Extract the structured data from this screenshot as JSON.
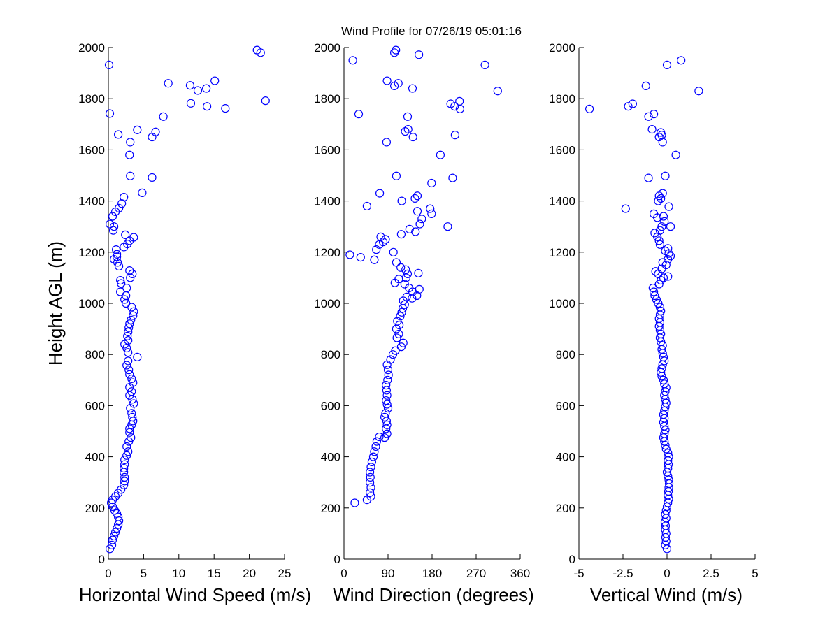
{
  "figure": {
    "title": "Wind Profile for  07/26/19 05:01:16",
    "marker_color": "#0000ff",
    "background": "#ffffff"
  },
  "chart_data": [
    {
      "type": "scatter",
      "xlabel": "Horizontal Wind Speed (m/s)",
      "ylabel": "Height AGL (m)",
      "xlim": [
        0,
        25
      ],
      "ylim": [
        0,
        2000
      ],
      "xticks": [
        "0",
        "5",
        "10",
        "15",
        "20",
        "25"
      ],
      "yticks": [
        "0",
        "200",
        "400",
        "600",
        "800",
        "1000",
        "1200",
        "1400",
        "1600",
        "1800",
        "2000"
      ],
      "grid": false,
      "points": [
        [
          0.2,
          40
        ],
        [
          0.5,
          55
        ],
        [
          0.6,
          75
        ],
        [
          0.8,
          90
        ],
        [
          1.0,
          105
        ],
        [
          1.2,
          120
        ],
        [
          1.4,
          135
        ],
        [
          1.5,
          150
        ],
        [
          1.4,
          165
        ],
        [
          1.2,
          178
        ],
        [
          0.9,
          190
        ],
        [
          0.6,
          205
        ],
        [
          0.4,
          220
        ],
        [
          0.6,
          232
        ],
        [
          1.0,
          245
        ],
        [
          1.4,
          258
        ],
        [
          1.8,
          272
        ],
        [
          2.2,
          290
        ],
        [
          2.3,
          305
        ],
        [
          2.3,
          320
        ],
        [
          2.2,
          340
        ],
        [
          2.2,
          355
        ],
        [
          2.3,
          370
        ],
        [
          2.3,
          388
        ],
        [
          2.6,
          405
        ],
        [
          2.8,
          420
        ],
        [
          2.6,
          440
        ],
        [
          2.9,
          460
        ],
        [
          3.2,
          475
        ],
        [
          3.0,
          495
        ],
        [
          3.0,
          510
        ],
        [
          3.3,
          525
        ],
        [
          3.5,
          540
        ],
        [
          3.4,
          555
        ],
        [
          3.3,
          570
        ],
        [
          3.1,
          590
        ],
        [
          3.6,
          608
        ],
        [
          3.4,
          625
        ],
        [
          3.0,
          640
        ],
        [
          3.3,
          655
        ],
        [
          3.0,
          672
        ],
        [
          3.5,
          690
        ],
        [
          3.3,
          705
        ],
        [
          3.0,
          722
        ],
        [
          2.9,
          740
        ],
        [
          2.6,
          758
        ],
        [
          2.8,
          775
        ],
        [
          4.1,
          790
        ],
        [
          2.8,
          808
        ],
        [
          2.6,
          825
        ],
        [
          2.3,
          840
        ],
        [
          2.8,
          855
        ],
        [
          2.7,
          872
        ],
        [
          2.8,
          888
        ],
        [
          2.9,
          905
        ],
        [
          3.0,
          920
        ],
        [
          3.2,
          935
        ],
        [
          3.5,
          952
        ],
        [
          3.6,
          968
        ],
        [
          3.3,
          985
        ],
        [
          2.5,
          1000
        ],
        [
          2.3,
          1015
        ],
        [
          2.5,
          1030
        ],
        [
          1.7,
          1045
        ],
        [
          2.6,
          1060
        ],
        [
          1.8,
          1078
        ],
        [
          1.7,
          1090
        ],
        [
          3.1,
          1100
        ],
        [
          3.4,
          1115
        ],
        [
          3.0,
          1128
        ],
        [
          1.5,
          1145
        ],
        [
          1.3,
          1160
        ],
        [
          0.8,
          1172
        ],
        [
          1.2,
          1182
        ],
        [
          1.2,
          1192
        ],
        [
          1.1,
          1210
        ],
        [
          2.2,
          1220
        ],
        [
          2.7,
          1232
        ],
        [
          3.0,
          1245
        ],
        [
          3.6,
          1258
        ],
        [
          2.4,
          1268
        ],
        [
          0.7,
          1285
        ],
        [
          0.8,
          1300
        ],
        [
          0.2,
          1310
        ],
        [
          0.6,
          1340
        ],
        [
          1.0,
          1358
        ],
        [
          1.5,
          1372
        ],
        [
          1.9,
          1390
        ],
        [
          2.2,
          1415
        ],
        [
          4.8,
          1432
        ],
        [
          3.1,
          1498
        ],
        [
          6.2,
          1492
        ],
        [
          3.0,
          1580
        ],
        [
          3.1,
          1630
        ],
        [
          1.4,
          1660
        ],
        [
          6.2,
          1650
        ],
        [
          6.7,
          1670
        ],
        [
          4.1,
          1678
        ],
        [
          7.8,
          1730
        ],
        [
          0.2,
          1742
        ],
        [
          8.5,
          1860
        ],
        [
          11.6,
          1852
        ],
        [
          12.7,
          1832
        ],
        [
          13.9,
          1840
        ],
        [
          15.1,
          1870
        ],
        [
          11.7,
          1782
        ],
        [
          14.0,
          1770
        ],
        [
          16.6,
          1762
        ],
        [
          22.3,
          1792
        ],
        [
          0.1,
          1932
        ],
        [
          21.1,
          1990
        ],
        [
          21.6,
          1980
        ]
      ]
    },
    {
      "type": "scatter",
      "xlabel": "Wind Direction (degrees)",
      "ylabel": "",
      "xlim": [
        0,
        360
      ],
      "ylim": [
        0,
        2000
      ],
      "xticks": [
        "0",
        "90",
        "180",
        "270",
        "360"
      ],
      "yticks": [
        "0",
        "200",
        "400",
        "600",
        "800",
        "1000",
        "1200",
        "1400",
        "1600",
        "1800",
        "2000"
      ],
      "grid": false,
      "points": [
        [
          22,
          220
        ],
        [
          47,
          232
        ],
        [
          55,
          245
        ],
        [
          53,
          260
        ],
        [
          55,
          280
        ],
        [
          53,
          300
        ],
        [
          54,
          320
        ],
        [
          53,
          340
        ],
        [
          55,
          360
        ],
        [
          57,
          380
        ],
        [
          60,
          400
        ],
        [
          62,
          420
        ],
        [
          65,
          440
        ],
        [
          67,
          460
        ],
        [
          72,
          478
        ],
        [
          83,
          475
        ],
        [
          88,
          490
        ],
        [
          86,
          510
        ],
        [
          88,
          525
        ],
        [
          87,
          540
        ],
        [
          83,
          555
        ],
        [
          85,
          570
        ],
        [
          90,
          590
        ],
        [
          88,
          605
        ],
        [
          86,
          620
        ],
        [
          88,
          640
        ],
        [
          87,
          660
        ],
        [
          86,
          680
        ],
        [
          89,
          700
        ],
        [
          91,
          720
        ],
        [
          90,
          740
        ],
        [
          88,
          760
        ],
        [
          95,
          780
        ],
        [
          100,
          800
        ],
        [
          105,
          815
        ],
        [
          117,
          830
        ],
        [
          121,
          845
        ],
        [
          108,
          865
        ],
        [
          112,
          880
        ],
        [
          107,
          900
        ],
        [
          113,
          915
        ],
        [
          109,
          930
        ],
        [
          115,
          950
        ],
        [
          118,
          965
        ],
        [
          120,
          980
        ],
        [
          124,
          995
        ],
        [
          121,
          1010
        ],
        [
          128,
          1025
        ],
        [
          139,
          1020
        ],
        [
          149,
          1030
        ],
        [
          154,
          1055
        ],
        [
          140,
          1045
        ],
        [
          133,
          1060
        ],
        [
          124,
          1075
        ],
        [
          104,
          1080
        ],
        [
          112,
          1095
        ],
        [
          127,
          1100
        ],
        [
          130,
          1115
        ],
        [
          152,
          1118
        ],
        [
          126,
          1132
        ],
        [
          116,
          1140
        ],
        [
          107,
          1160
        ],
        [
          101,
          1200
        ],
        [
          66,
          1210
        ],
        [
          72,
          1230
        ],
        [
          80,
          1240
        ],
        [
          85,
          1250
        ],
        [
          75,
          1260
        ],
        [
          12,
          1190
        ],
        [
          34,
          1180
        ],
        [
          62,
          1170
        ],
        [
          212,
          1300
        ],
        [
          146,
          1280
        ],
        [
          117,
          1270
        ],
        [
          134,
          1290
        ],
        [
          155,
          1310
        ],
        [
          159,
          1330
        ],
        [
          179,
          1350
        ],
        [
          176,
          1370
        ],
        [
          150,
          1360
        ],
        [
          118,
          1400
        ],
        [
          145,
          1410
        ],
        [
          150,
          1420
        ],
        [
          47,
          1380
        ],
        [
          73,
          1430
        ],
        [
          179,
          1470
        ],
        [
          107,
          1498
        ],
        [
          222,
          1490
        ],
        [
          197,
          1580
        ],
        [
          87,
          1630
        ],
        [
          141,
          1650
        ],
        [
          227,
          1658
        ],
        [
          125,
          1672
        ],
        [
          131,
          1680
        ],
        [
          30,
          1740
        ],
        [
          130,
          1730
        ],
        [
          226,
          1770
        ],
        [
          218,
          1780
        ],
        [
          236,
          1790
        ],
        [
          237,
          1760
        ],
        [
          111,
          1860
        ],
        [
          103,
          1850
        ],
        [
          88,
          1870
        ],
        [
          140,
          1840
        ],
        [
          314,
          1830
        ],
        [
          18,
          1950
        ],
        [
          288,
          1932
        ],
        [
          103,
          1980
        ],
        [
          106,
          1990
        ],
        [
          153,
          1972
        ]
      ]
    },
    {
      "type": "scatter",
      "xlabel": "Vertical Wind (m/s)",
      "ylabel": "",
      "xlim": [
        -5,
        5
      ],
      "ylim": [
        0,
        2000
      ],
      "xticks": [
        "-5",
        "-2.5",
        "0",
        "2.5",
        "5"
      ],
      "yticks": [
        "0",
        "200",
        "400",
        "600",
        "800",
        "1000",
        "1200",
        "1400",
        "1600",
        "1800",
        "2000"
      ],
      "grid": false,
      "points": [
        [
          0.0,
          40
        ],
        [
          -0.1,
          55
        ],
        [
          -0.05,
          70
        ],
        [
          -0.08,
          85
        ],
        [
          -0.05,
          100
        ],
        [
          -0.1,
          115
        ],
        [
          -0.08,
          130
        ],
        [
          -0.12,
          145
        ],
        [
          -0.05,
          160
        ],
        [
          -0.1,
          175
        ],
        [
          -0.05,
          190
        ],
        [
          0.0,
          205
        ],
        [
          0.05,
          220
        ],
        [
          0.1,
          235
        ],
        [
          0.05,
          250
        ],
        [
          0.08,
          265
        ],
        [
          0.1,
          280
        ],
        [
          0.12,
          295
        ],
        [
          0.1,
          310
        ],
        [
          0.05,
          325
        ],
        [
          0.0,
          340
        ],
        [
          0.05,
          355
        ],
        [
          0.08,
          370
        ],
        [
          0.05,
          385
        ],
        [
          0.1,
          400
        ],
        [
          0.05,
          415
        ],
        [
          -0.05,
          430
        ],
        [
          -0.1,
          445
        ],
        [
          -0.15,
          460
        ],
        [
          -0.2,
          475
        ],
        [
          -0.15,
          490
        ],
        [
          -0.1,
          505
        ],
        [
          -0.15,
          520
        ],
        [
          -0.2,
          535
        ],
        [
          -0.15,
          550
        ],
        [
          -0.2,
          565
        ],
        [
          -0.15,
          580
        ],
        [
          -0.1,
          595
        ],
        [
          -0.05,
          610
        ],
        [
          -0.1,
          625
        ],
        [
          -0.15,
          640
        ],
        [
          -0.1,
          655
        ],
        [
          -0.05,
          670
        ],
        [
          -0.15,
          685
        ],
        [
          -0.2,
          700
        ],
        [
          -0.3,
          715
        ],
        [
          -0.35,
          730
        ],
        [
          -0.3,
          745
        ],
        [
          -0.25,
          760
        ],
        [
          -0.15,
          775
        ],
        [
          -0.2,
          790
        ],
        [
          -0.25,
          805
        ],
        [
          -0.3,
          820
        ],
        [
          -0.25,
          835
        ],
        [
          -0.35,
          850
        ],
        [
          -0.4,
          865
        ],
        [
          -0.35,
          880
        ],
        [
          -0.4,
          895
        ],
        [
          -0.45,
          910
        ],
        [
          -0.4,
          925
        ],
        [
          -0.45,
          940
        ],
        [
          -0.4,
          955
        ],
        [
          -0.35,
          970
        ],
        [
          -0.4,
          985
        ],
        [
          -0.5,
          1000
        ],
        [
          -0.6,
          1015
        ],
        [
          -0.7,
          1030
        ],
        [
          -0.75,
          1045
        ],
        [
          -0.8,
          1060
        ],
        [
          -0.45,
          1075
        ],
        [
          -0.35,
          1090
        ],
        [
          -0.2,
          1100
        ],
        [
          0.05,
          1105
        ],
        [
          -0.5,
          1115
        ],
        [
          -0.65,
          1125
        ],
        [
          -0.3,
          1135
        ],
        [
          -0.05,
          1150
        ],
        [
          -0.25,
          1160
        ],
        [
          0.05,
          1172
        ],
        [
          0.2,
          1185
        ],
        [
          0.1,
          1195
        ],
        [
          -0.1,
          1205
        ],
        [
          0.05,
          1215
        ],
        [
          -0.4,
          1230
        ],
        [
          -0.45,
          1245
        ],
        [
          -0.55,
          1260
        ],
        [
          -0.7,
          1275
        ],
        [
          -0.4,
          1285
        ],
        [
          -0.3,
          1300
        ],
        [
          0.2,
          1300
        ],
        [
          -0.15,
          1320
        ],
        [
          -0.55,
          1335
        ],
        [
          -0.2,
          1340
        ],
        [
          -0.75,
          1350
        ],
        [
          -2.35,
          1370
        ],
        [
          0.1,
          1378
        ],
        [
          -0.5,
          1400
        ],
        [
          -0.35,
          1410
        ],
        [
          -0.45,
          1420
        ],
        [
          -0.25,
          1430
        ],
        [
          -1.05,
          1490
        ],
        [
          -0.1,
          1498
        ],
        [
          0.5,
          1580
        ],
        [
          -0.25,
          1630
        ],
        [
          -0.45,
          1650
        ],
        [
          -0.3,
          1658
        ],
        [
          -0.35,
          1668
        ],
        [
          -0.85,
          1680
        ],
        [
          -1.05,
          1730
        ],
        [
          -0.75,
          1740
        ],
        [
          -2.2,
          1770
        ],
        [
          -1.95,
          1780
        ],
        [
          -4.4,
          1760
        ],
        [
          1.8,
          1830
        ],
        [
          -1.2,
          1850
        ],
        [
          0.0,
          1932
        ],
        [
          0.8,
          1950
        ]
      ]
    }
  ]
}
